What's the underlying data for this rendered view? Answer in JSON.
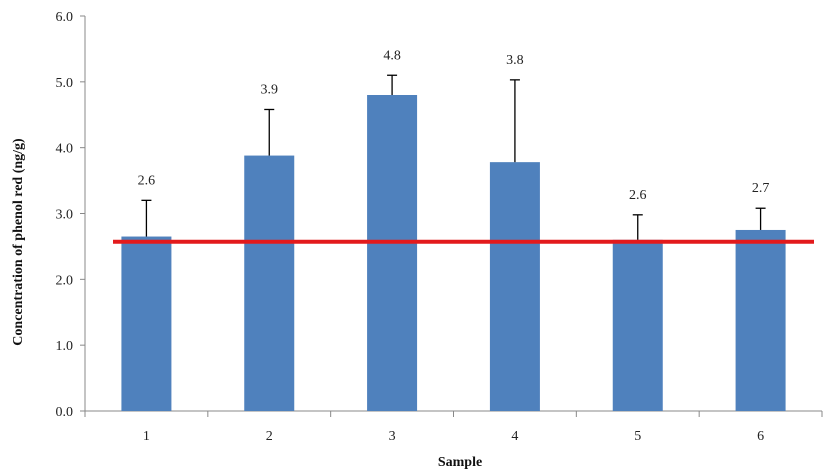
{
  "chart_data": {
    "type": "bar",
    "title": "",
    "xlabel": "Sample",
    "ylabel": "Concentration  of phenol  red (ng/g)",
    "categories": [
      "1",
      "2",
      "3",
      "4",
      "5",
      "6"
    ],
    "values": [
      2.65,
      3.88,
      4.8,
      3.78,
      2.6,
      2.75
    ],
    "data_labels": [
      "2.6",
      "3.9",
      "4.8",
      "3.8",
      "2.6",
      "2.7"
    ],
    "error_plus": [
      0.55,
      0.7,
      0.3,
      1.25,
      0.38,
      0.33
    ],
    "ylim": [
      0,
      6
    ],
    "yticks": [
      "0.0",
      "1.0",
      "2.0",
      "3.0",
      "4.0",
      "5.0",
      "6.0"
    ],
    "reference_line": {
      "value": 2.57,
      "color": "#e31a1c"
    },
    "bar_color": "#4f81bd",
    "grid": false,
    "legend": "none"
  }
}
